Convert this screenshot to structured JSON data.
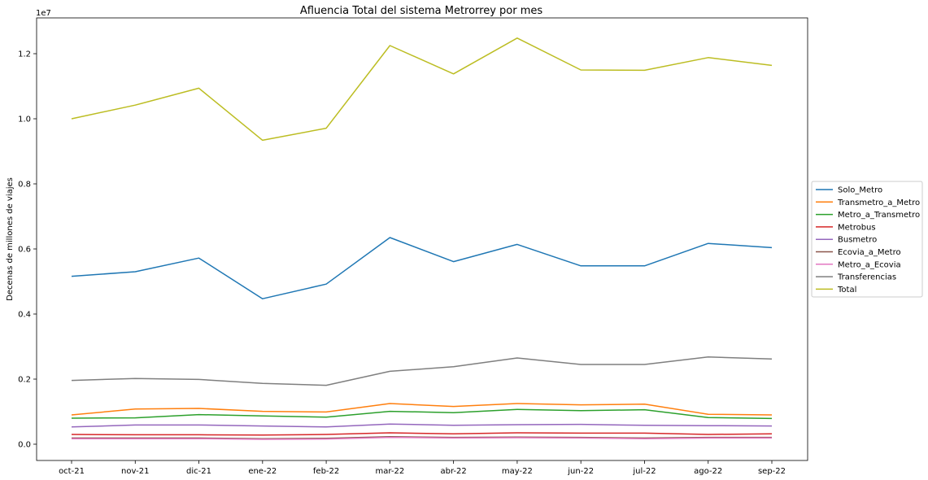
{
  "chart_data": {
    "type": "line",
    "title": "Afluencia Total del sistema Metrorrey por mes",
    "xlabel": "",
    "ylabel": "Decenas de millones de viajes",
    "y_offset_label": "1e7",
    "y_scale": 10000000,
    "ylim": [
      -0.05,
      1.31
    ],
    "yticks": [
      0.0,
      0.2,
      0.4,
      0.6,
      0.8,
      1.0,
      1.2
    ],
    "ytick_labels": [
      "0.0",
      "0.2",
      "0.4",
      "0.6",
      "0.8",
      "1.0",
      "1.2"
    ],
    "categories": [
      "oct-21",
      "nov-21",
      "dic-21",
      "ene-22",
      "feb-22",
      "mar-22",
      "abr-22",
      "may-22",
      "jun-22",
      "jul-22",
      "ago-22",
      "sep-22"
    ],
    "legend_position": "center-right, outside plot",
    "grid": false,
    "series": [
      {
        "name": "Solo_Metro",
        "color": "#1f77b4",
        "values": [
          0.516,
          0.53,
          0.572,
          0.447,
          0.492,
          0.635,
          0.561,
          0.614,
          0.548,
          0.548,
          0.617,
          0.604
        ]
      },
      {
        "name": "Transmetro_a_Metro",
        "color": "#ff7f0e",
        "values": [
          0.09,
          0.108,
          0.11,
          0.101,
          0.099,
          0.125,
          0.116,
          0.125,
          0.121,
          0.123,
          0.092,
          0.09
        ]
      },
      {
        "name": "Metro_a_Transmetro",
        "color": "#2ca02c",
        "values": [
          0.08,
          0.081,
          0.091,
          0.087,
          0.083,
          0.101,
          0.097,
          0.107,
          0.103,
          0.106,
          0.082,
          0.079
        ]
      },
      {
        "name": "Metrobus",
        "color": "#d62728",
        "values": [
          0.03,
          0.029,
          0.029,
          0.028,
          0.03,
          0.035,
          0.032,
          0.035,
          0.034,
          0.034,
          0.03,
          0.032
        ]
      },
      {
        "name": "Busmetro",
        "color": "#9467bd",
        "values": [
          0.053,
          0.059,
          0.059,
          0.056,
          0.053,
          0.062,
          0.058,
          0.06,
          0.061,
          0.058,
          0.057,
          0.056
        ]
      },
      {
        "name": "Ecovia_a_Metro",
        "color": "#8c564b",
        "values": [
          0.019,
          0.019,
          0.019,
          0.017,
          0.018,
          0.023,
          0.021,
          0.022,
          0.021,
          0.019,
          0.021,
          0.021
        ]
      },
      {
        "name": "Metro_a_Ecovia",
        "color": "#e377c2",
        "values": [
          0.017,
          0.017,
          0.017,
          0.015,
          0.016,
          0.021,
          0.019,
          0.02,
          0.019,
          0.017,
          0.019,
          0.019
        ]
      },
      {
        "name": "Transferencias",
        "color": "#7f7f7f",
        "values": [
          0.196,
          0.202,
          0.199,
          0.187,
          0.181,
          0.224,
          0.238,
          0.265,
          0.245,
          0.245,
          0.268,
          0.262
        ]
      },
      {
        "name": "Total",
        "color": "#bcbd22",
        "values": [
          1.0,
          1.042,
          1.094,
          0.934,
          0.971,
          1.225,
          1.138,
          1.248,
          1.15,
          1.149,
          1.188,
          1.164
        ]
      }
    ]
  }
}
